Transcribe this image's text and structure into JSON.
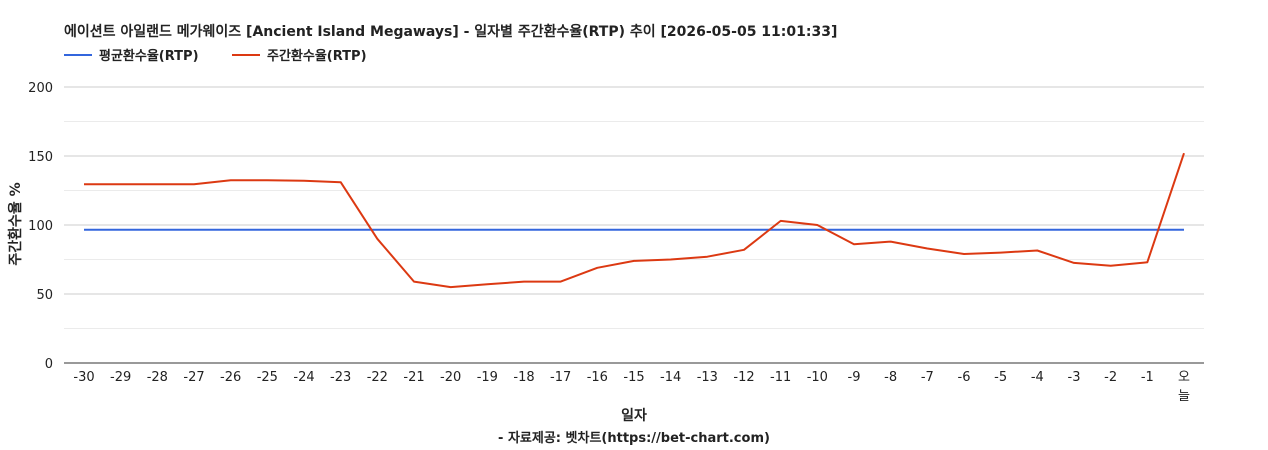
{
  "chart_data": {
    "type": "line",
    "title": "에이션트 아일랜드 메가웨이즈 [Ancient Island Megaways] - 일자별 주간환수율(RTP) 추이 [2026-05-05 11:01:33]",
    "xlabel": "일자",
    "ylabel": "주간환수율 %",
    "footer": "- 자료제공: 벳차트(https://bet-chart.com)",
    "categories": [
      "-30",
      "-29",
      "-28",
      "-27",
      "-26",
      "-25",
      "-24",
      "-23",
      "-22",
      "-21",
      "-20",
      "-19",
      "-18",
      "-17",
      "-16",
      "-15",
      "-14",
      "-13",
      "-12",
      "-11",
      "-10",
      "-9",
      "-8",
      "-7",
      "-6",
      "-5",
      "-4",
      "-3",
      "-2",
      "-1",
      "오늘"
    ],
    "yticks": [
      "0",
      "50",
      "100",
      "150",
      "200"
    ],
    "ylim": [
      0,
      200
    ],
    "grid": true,
    "legend_position": "top-left",
    "series": [
      {
        "name": "평균환수율(RTP)",
        "color": "#3366dd",
        "values": [
          96.5,
          96.5,
          96.5,
          96.5,
          96.5,
          96.5,
          96.5,
          96.5,
          96.5,
          96.5,
          96.5,
          96.5,
          96.5,
          96.5,
          96.5,
          96.5,
          96.5,
          96.5,
          96.5,
          96.5,
          96.5,
          96.5,
          96.5,
          96.5,
          96.5,
          96.5,
          96.5,
          96.5,
          96.5,
          96.5,
          96.5
        ]
      },
      {
        "name": "주간환수율(RTP)",
        "color": "#dc3912",
        "values": [
          129.5,
          129.5,
          129.5,
          129.5,
          132.5,
          132.5,
          132,
          131,
          90,
          59,
          55,
          57,
          59,
          59,
          69,
          74,
          75,
          77,
          82,
          103,
          100,
          86,
          88,
          83,
          79,
          80,
          81.5,
          72.5,
          70.5,
          73,
          152
        ]
      }
    ]
  }
}
